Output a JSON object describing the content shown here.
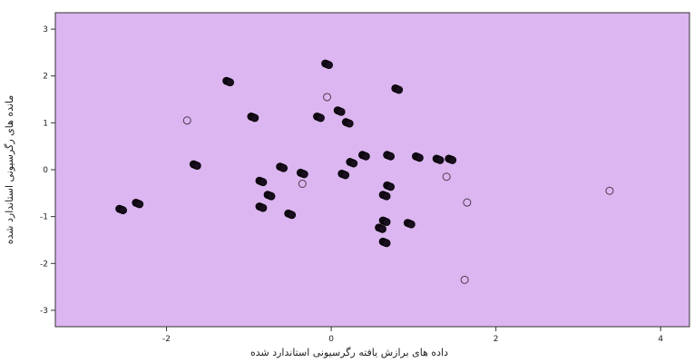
{
  "chart_data": {
    "type": "scatter",
    "title": "",
    "xlabel": "داده های برازش یافته رگرسیونی استاندارد شده",
    "ylabel": "مانده های رگرسیونی استاندارد شده",
    "xlim": [
      -3.35,
      4.35
    ],
    "ylim": [
      -3.35,
      3.35
    ],
    "xticks": [
      -2,
      0,
      2,
      4
    ],
    "yticks": [
      -3,
      -2,
      -1,
      0,
      1,
      2,
      3
    ],
    "xtick_labels": [
      "-2",
      "0",
      "2",
      "4"
    ],
    "ytick_labels": [
      "-3",
      "-2",
      "-1",
      "0",
      "1",
      "2",
      "3"
    ],
    "grid": false,
    "legend": null,
    "plot_background": "#dcb6f0",
    "filled_marker_color": "#1a0f1f",
    "open_marker_color": "#4a3a50",
    "series": [
      {
        "marker": "filled",
        "points": [
          [
            -2.55,
            -0.85
          ],
          [
            -2.35,
            -0.72
          ],
          [
            -1.65,
            0.1
          ],
          [
            -1.25,
            1.88
          ],
          [
            -0.95,
            1.12
          ],
          [
            -0.85,
            -0.25
          ],
          [
            -0.85,
            -0.8
          ],
          [
            -0.75,
            -0.55
          ],
          [
            -0.6,
            0.05
          ],
          [
            -0.5,
            -0.95
          ],
          [
            -0.35,
            -0.08
          ],
          [
            -0.15,
            1.12
          ],
          [
            -0.05,
            2.25
          ],
          [
            0.1,
            1.25
          ],
          [
            0.15,
            -0.1
          ],
          [
            0.2,
            1.0
          ],
          [
            0.25,
            0.15
          ],
          [
            0.4,
            0.3
          ],
          [
            0.6,
            -1.25
          ],
          [
            0.65,
            -0.55
          ],
          [
            0.65,
            -1.1
          ],
          [
            0.65,
            -1.55
          ],
          [
            0.7,
            -0.35
          ],
          [
            0.7,
            0.3
          ],
          [
            0.8,
            1.72
          ],
          [
            0.95,
            -1.15
          ],
          [
            1.05,
            0.27
          ],
          [
            1.3,
            0.22
          ],
          [
            1.45,
            0.22
          ]
        ]
      },
      {
        "marker": "open",
        "points": [
          [
            -1.75,
            1.05
          ],
          [
            -0.35,
            -0.3
          ],
          [
            -0.05,
            1.55
          ],
          [
            1.4,
            -0.15
          ],
          [
            1.65,
            -0.7
          ],
          [
            1.62,
            -2.35
          ],
          [
            3.38,
            -0.45
          ]
        ]
      }
    ]
  }
}
